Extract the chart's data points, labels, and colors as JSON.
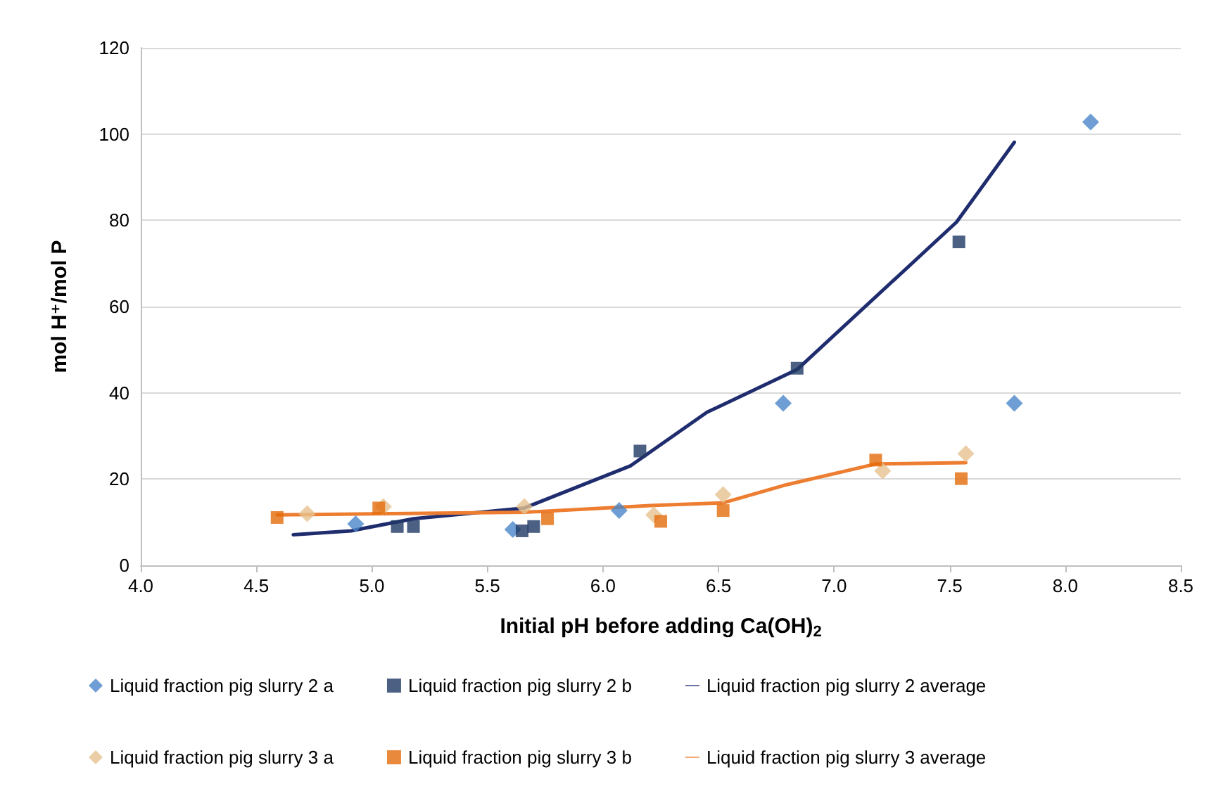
{
  "chart_data": {
    "type": "scatter",
    "xlabel": "Initial pH before adding Ca(OH)$_{2}$",
    "ylabel": "mol H⁺/mol P",
    "xlim": [
      4.0,
      8.5
    ],
    "xticks": [
      {
        "value": 4.0,
        "label": "4.0"
      },
      {
        "value": 4.5,
        "label": "4.5"
      },
      {
        "value": 5.0,
        "label": "5.0"
      },
      {
        "value": 5.5,
        "label": "5.5"
      },
      {
        "value": 6.0,
        "label": "6.0"
      },
      {
        "value": 6.5,
        "label": "6.5"
      },
      {
        "value": 7.0,
        "label": "7.0"
      },
      {
        "value": 7.5,
        "label": "7.5"
      },
      {
        "value": 8.0,
        "label": "8.0"
      },
      {
        "value": 8.5,
        "label": "8.5"
      }
    ],
    "ylim": [
      0,
      120
    ],
    "yticks": [
      0,
      20,
      40,
      60,
      80,
      100,
      120
    ],
    "grid": "y",
    "legend": "bottom",
    "series": [
      {
        "name": "Liquid fraction pig slurry 2 a",
        "marker": "diamond",
        "color": "#4a86c8",
        "x": [
          4.93,
          5.61,
          6.07,
          6.78,
          7.78,
          8.11
        ],
        "values": [
          9.6,
          8.3,
          12.7,
          37.6,
          37.6,
          102.8
        ]
      },
      {
        "name": "Liquid fraction pig slurry 2 b",
        "marker": "square",
        "color": "#1f3864",
        "x": [
          5.11,
          5.18,
          5.65,
          5.7,
          6.16,
          6.84,
          7.54
        ],
        "values": [
          9.0,
          9.0,
          8.0,
          9.0,
          26.5,
          45.7,
          75.0
        ]
      },
      {
        "name": "Liquid fraction pig slurry 2 average",
        "type": "line",
        "marker": "none",
        "color": "#1f2d6e",
        "x": [
          4.66,
          4.91,
          5.18,
          5.66,
          6.12,
          6.45,
          6.84,
          7.53,
          7.78
        ],
        "values": [
          7.1,
          8.0,
          10.8,
          13.3,
          23.1,
          35.5,
          45.4,
          79.6,
          98.1
        ]
      },
      {
        "name": "Liquid fraction pig slurry 3 a",
        "marker": "diamond",
        "color": "#e6c28e",
        "x": [
          4.72,
          5.05,
          5.66,
          6.22,
          6.52,
          7.21,
          7.57
        ],
        "values": [
          12.0,
          13.6,
          13.6,
          11.7,
          16.4,
          21.9,
          25.9
        ]
      },
      {
        "name": "Liquid fraction pig slurry 3 b",
        "marker": "square",
        "color": "#e36c0a",
        "x": [
          4.59,
          5.03,
          5.76,
          6.25,
          6.52,
          7.18,
          7.55
        ],
        "values": [
          11.1,
          13.3,
          10.8,
          10.2,
          12.7,
          24.4,
          20.1
        ]
      },
      {
        "name": "Liquid fraction pig slurry 3 average",
        "type": "line",
        "marker": "none",
        "color": "#ed7d31",
        "x": [
          4.59,
          5.66,
          6.22,
          6.52,
          6.78,
          7.18,
          7.57
        ],
        "values": [
          11.7,
          12.3,
          13.9,
          14.5,
          18.5,
          23.5,
          23.8
        ]
      }
    ]
  }
}
